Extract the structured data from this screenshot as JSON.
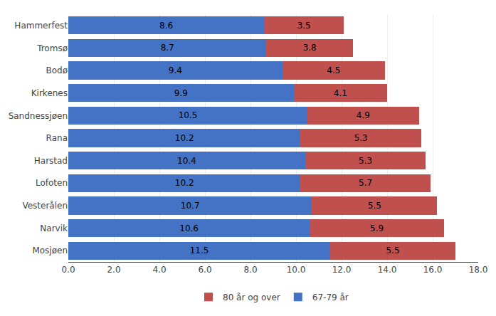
{
  "chart_data": {
    "type": "bar",
    "orientation": "horizontal",
    "stacked": true,
    "categories": [
      "Hammerfest",
      "Tromsø",
      "Bodø",
      "Kirkenes",
      "Sandnessjøen",
      "Rana",
      "Harstad",
      "Lofoten",
      "Vesterålen",
      "Narvik",
      "Mosjøen"
    ],
    "series": [
      {
        "name": "67-79 år",
        "color": "#4472C4",
        "values": [
          8.6,
          8.7,
          9.4,
          9.9,
          10.5,
          10.2,
          10.4,
          10.2,
          10.7,
          10.6,
          11.5
        ]
      },
      {
        "name": "80 år og over",
        "color": "#C0504D",
        "values": [
          3.5,
          3.8,
          4.5,
          4.1,
          4.9,
          5.3,
          5.3,
          5.7,
          5.5,
          5.9,
          5.5
        ]
      }
    ],
    "xlim": [
      0.0,
      18.0
    ],
    "xticks": [
      {
        "value": 0,
        "label": "0.0"
      },
      {
        "value": 2,
        "label": "2.0"
      },
      {
        "value": 4,
        "label": "4.0"
      },
      {
        "value": 6,
        "label": "6.0"
      },
      {
        "value": 8,
        "label": "8.0"
      },
      {
        "value": 10,
        "label": "10.0"
      },
      {
        "value": 12,
        "label": "12.0"
      },
      {
        "value": 14,
        "label": "14.0"
      },
      {
        "value": 16,
        "label": "16.0"
      },
      {
        "value": 18,
        "label": "18.0"
      }
    ],
    "grid": true,
    "legend": "bottom",
    "data_labels": true
  }
}
